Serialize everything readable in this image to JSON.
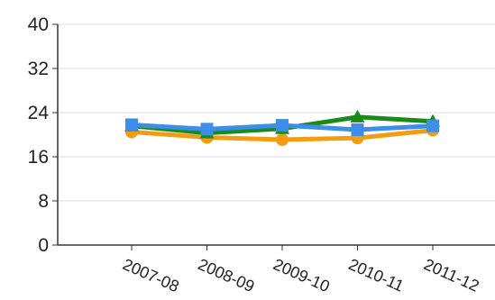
{
  "chart_data": {
    "type": "line",
    "title": "",
    "xlabel": "",
    "ylabel": "",
    "categories": [
      "2007-08",
      "2008-09",
      "2009-10",
      "2010-11",
      "2011-12"
    ],
    "ylim": [
      0,
      40
    ],
    "yticks": [
      0,
      8,
      16,
      24,
      32,
      40
    ],
    "grid": true,
    "legend": "none",
    "series": [
      {
        "color": "#f39c12",
        "marker": "circle",
        "values": [
          20.5,
          19.5,
          19.1,
          19.4,
          20.8
        ]
      },
      {
        "color": "#1a8a1a",
        "marker": "triangle",
        "values": [
          21.6,
          20.3,
          21.1,
          23.2,
          22.4
        ]
      },
      {
        "color": "#3d8ee8",
        "marker": "square",
        "values": [
          21.8,
          21.0,
          21.7,
          20.9,
          21.6
        ]
      }
    ]
  }
}
